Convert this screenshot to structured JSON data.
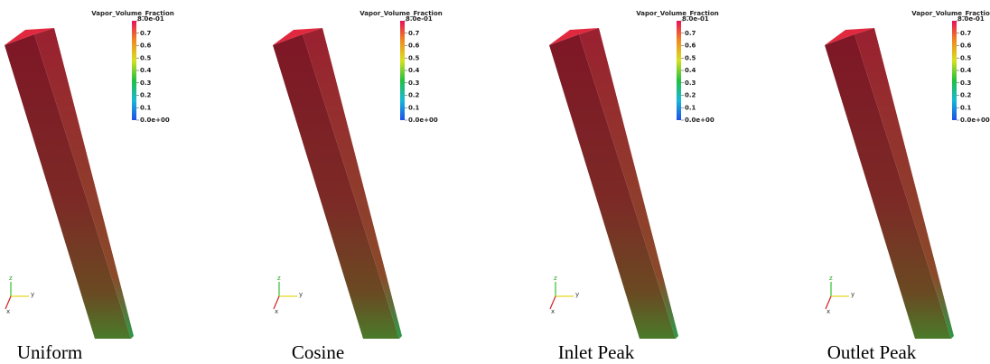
{
  "panels": [
    {
      "caption": "Uniform",
      "colorbar": {
        "title": "Vapor_Volume_Fraction",
        "ticks": [
          "8.0e-01",
          "0.7",
          "0.6",
          "0.5",
          "0.4",
          "0.3",
          "0.2",
          "0.1",
          "0.0e+00"
        ]
      },
      "axes": {
        "z": "z",
        "y": "y",
        "x": "x"
      }
    },
    {
      "caption": "Cosine",
      "colorbar": {
        "title": "Vapor_Volume_Fraction",
        "ticks": [
          "8.0e-01",
          "0.7",
          "0.6",
          "0.5",
          "0.4",
          "0.3",
          "0.2",
          "0.1",
          "0.0e+00"
        ]
      },
      "axes": {
        "z": "z",
        "y": "y",
        "x": "x"
      }
    },
    {
      "caption": "Inlet Peak",
      "colorbar": {
        "title": "Vapor_Volume_Fraction",
        "ticks": [
          "8.0e-01",
          "0.7",
          "0.6",
          "0.5",
          "0.4",
          "0.3",
          "0.2",
          "0.1",
          "0.0e+00"
        ]
      },
      "axes": {
        "z": "z",
        "y": "y",
        "x": "x"
      }
    },
    {
      "caption": "Outlet Peak",
      "colorbar": {
        "title": "Vapor_Volume_Fraction",
        "ticks": [
          "8.0e-01",
          "0.7",
          "0.6",
          "0.5",
          "0.4",
          "0.3",
          "0.2",
          "0.1",
          "0.0e+00"
        ]
      },
      "axes": {
        "z": "z",
        "y": "y",
        "x": "x"
      }
    }
  ]
}
